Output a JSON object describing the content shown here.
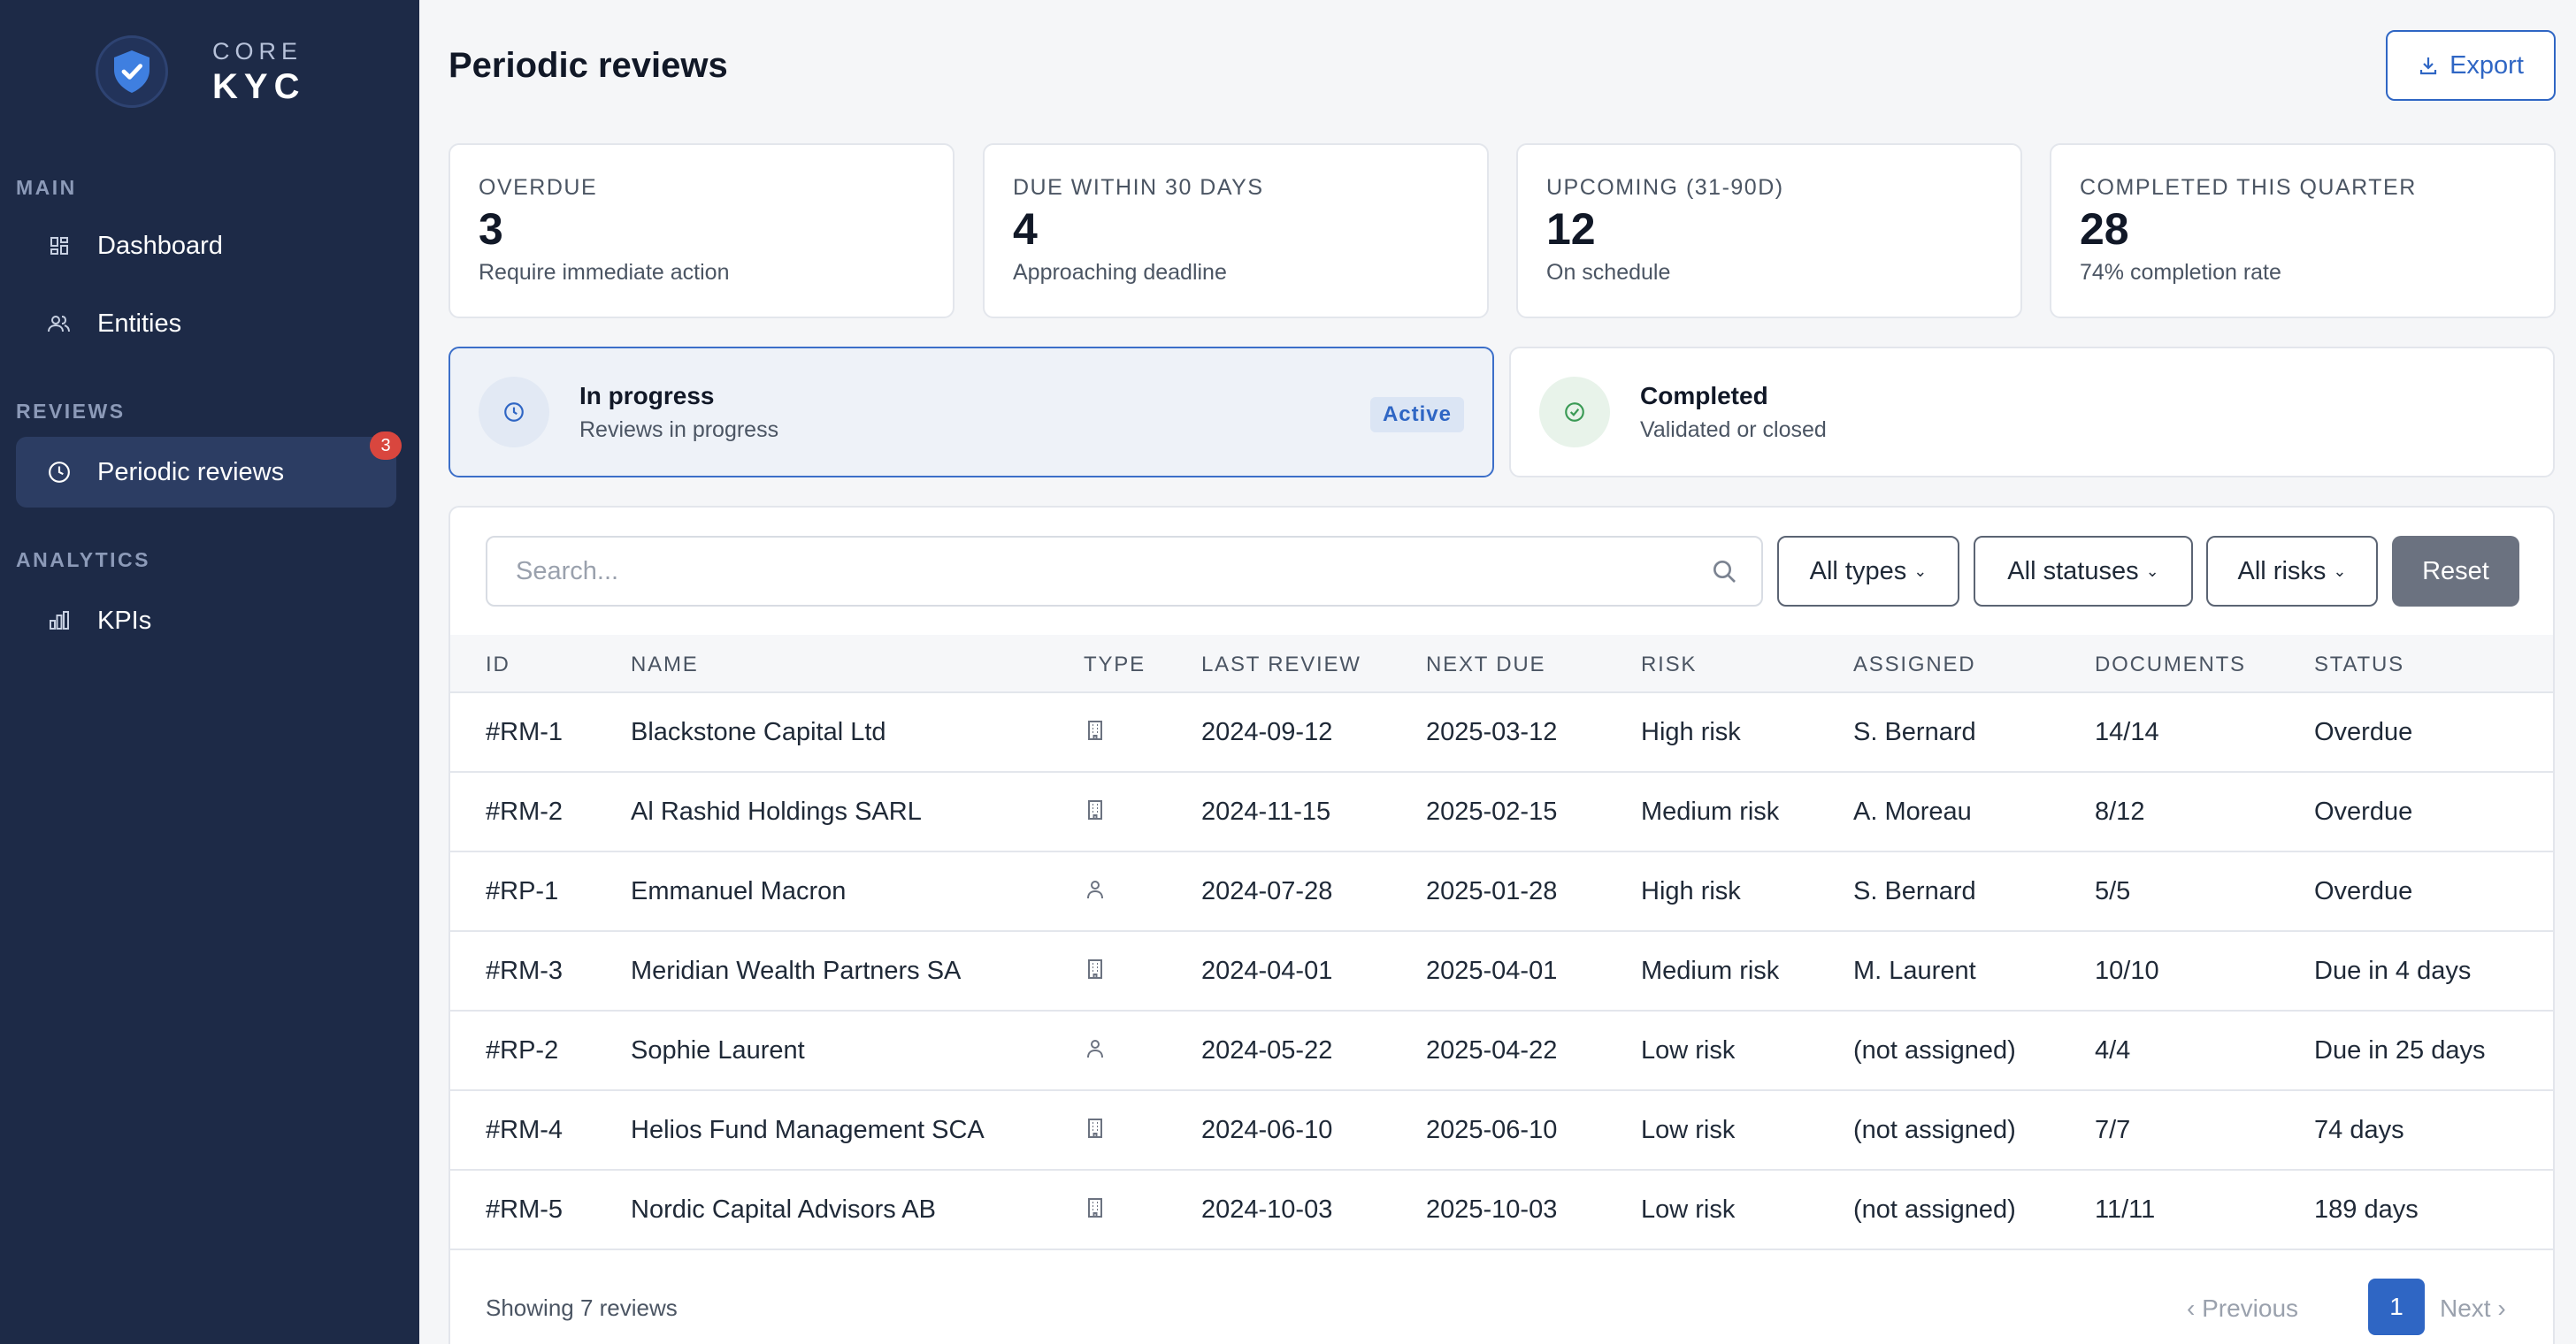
{
  "app": {
    "logo_top": "CORE",
    "logo_bottom": "KYC"
  },
  "sidebar": {
    "sections": [
      {
        "label": "MAIN"
      },
      {
        "label": "REVIEWS"
      },
      {
        "label": "ANALYTICS"
      }
    ],
    "items": [
      {
        "label": "Dashboard",
        "icon": "grid-icon"
      },
      {
        "label": "Entities",
        "icon": "users-icon"
      },
      {
        "label": "Periodic reviews",
        "icon": "clock-icon",
        "badge": "3",
        "active": true
      },
      {
        "label": "KPIs",
        "icon": "bar-chart-icon"
      }
    ]
  },
  "header": {
    "title": "Periodic reviews",
    "export_label": "Export"
  },
  "stats": [
    {
      "label": "OVERDUE",
      "value": "3",
      "sub": "Require immediate action"
    },
    {
      "label": "DUE WITHIN 30 DAYS",
      "value": "4",
      "sub": "Approaching deadline"
    },
    {
      "label": "UPCOMING (31-90D)",
      "value": "12",
      "sub": "On schedule"
    },
    {
      "label": "COMPLETED THIS QUARTER",
      "value": "28",
      "sub": "74% completion rate"
    }
  ],
  "tabs": [
    {
      "title": "In progress",
      "sub": "Reviews in progress",
      "pill": "Active"
    },
    {
      "title": "Completed",
      "sub": "Validated or closed"
    }
  ],
  "filters": {
    "search_placeholder": "Search...",
    "types": "All types",
    "statuses": "All statuses",
    "risks": "All risks",
    "reset": "Reset"
  },
  "table": {
    "columns": [
      "ID",
      "NAME",
      "TYPE",
      "LAST REVIEW",
      "NEXT DUE",
      "RISK",
      "ASSIGNED",
      "DOCUMENTS",
      "STATUS"
    ],
    "rows": [
      {
        "id": "#RM-1",
        "name": "Blackstone Capital Ltd",
        "type": "building-icon",
        "last_review": "2024-09-12",
        "next_due": "2025-03-12",
        "risk": "High risk",
        "assigned": "S. Bernard",
        "documents": "14/14",
        "status": "Overdue"
      },
      {
        "id": "#RM-2",
        "name": "Al Rashid Holdings SARL",
        "type": "building-icon",
        "last_review": "2024-11-15",
        "next_due": "2025-02-15",
        "risk": "Medium risk",
        "assigned": "A. Moreau",
        "documents": "8/12",
        "status": "Overdue"
      },
      {
        "id": "#RP-1",
        "name": "Emmanuel Macron",
        "type": "person-icon",
        "last_review": "2024-07-28",
        "next_due": "2025-01-28",
        "risk": "High risk",
        "assigned": "S. Bernard",
        "documents": "5/5",
        "status": "Overdue"
      },
      {
        "id": "#RM-3",
        "name": "Meridian Wealth Partners SA",
        "type": "building-icon",
        "last_review": "2024-04-01",
        "next_due": "2025-04-01",
        "risk": "Medium risk",
        "assigned": "M. Laurent",
        "documents": "10/10",
        "status": "Due in 4 days"
      },
      {
        "id": "#RP-2",
        "name": "Sophie Laurent",
        "type": "person-icon",
        "last_review": "2024-05-22",
        "next_due": "2025-04-22",
        "risk": "Low risk",
        "assigned": "(not assigned)",
        "documents": "4/4",
        "status": "Due in 25 days"
      },
      {
        "id": "#RM-4",
        "name": "Helios Fund Management SCA",
        "type": "building-icon",
        "last_review": "2024-06-10",
        "next_due": "2025-06-10",
        "risk": "Low risk",
        "assigned": "(not assigned)",
        "documents": "7/7",
        "status": "74 days"
      },
      {
        "id": "#RM-5",
        "name": "Nordic Capital Advisors AB",
        "type": "building-icon",
        "last_review": "2024-10-03",
        "next_due": "2025-10-03",
        "risk": "Low risk",
        "assigned": "(not assigned)",
        "documents": "11/11",
        "status": "189 days"
      }
    ]
  },
  "footer": {
    "showing": "Showing 7 reviews",
    "prev": "‹ Previous",
    "page": "1",
    "next": "Next ›"
  },
  "colors": {
    "sidebar": "#1d2a47",
    "accent": "#2f66c4",
    "badge": "#d9463e"
  }
}
